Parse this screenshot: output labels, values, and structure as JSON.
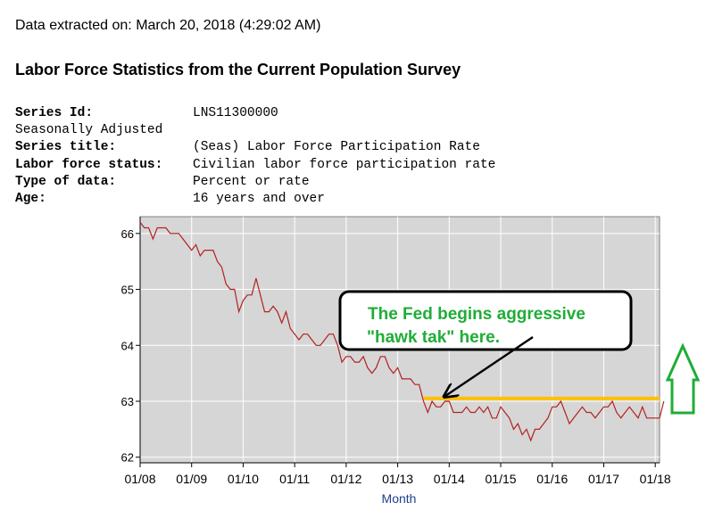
{
  "extracted": "Data extracted on: March 20, 2018 (4:29:02 AM)",
  "heading": "Labor Force Statistics from the Current Population Survey",
  "meta": {
    "series_id_label": "Series Id:",
    "series_id_value": "LNS11300000",
    "seasonal": "Seasonally Adjusted",
    "series_title_label": "Series title:",
    "series_title_value": "(Seas) Labor Force Participation Rate",
    "status_label": "Labor force status:",
    "status_value": "Civilian labor force participation rate",
    "type_label": "Type of data:",
    "type_value": "Percent or rate",
    "age_label": "Age:",
    "age_value": "16 years and over"
  },
  "chart_data": {
    "type": "line",
    "xlabel": "Month",
    "ylabel": "",
    "x_ticks": [
      "01/08",
      "01/09",
      "01/10",
      "01/11",
      "01/12",
      "01/13",
      "01/14",
      "01/15",
      "01/16",
      "01/17",
      "01/18"
    ],
    "y_ticks": [
      "62",
      "63",
      "64",
      "65",
      "66"
    ],
    "ylim": [
      61.9,
      66.3
    ],
    "xlim": [
      "2008-01",
      "2018-02"
    ],
    "grid": true,
    "series": [
      {
        "x_start": "2008-01",
        "values": [
          66.2,
          66.1,
          66.1,
          65.9,
          66.1,
          66.1,
          66.1,
          66.0,
          66.0,
          66.0,
          65.9,
          65.8,
          65.7,
          65.8,
          65.6,
          65.7,
          65.7,
          65.7,
          65.5,
          65.4,
          65.1,
          65.0,
          65.0,
          64.6,
          64.8,
          64.9,
          64.9,
          65.2,
          64.9,
          64.6,
          64.6,
          64.7,
          64.6,
          64.4,
          64.6,
          64.3,
          64.2,
          64.1,
          64.2,
          64.2,
          64.1,
          64.0,
          64.0,
          64.1,
          64.2,
          64.2,
          64.0,
          63.7,
          63.8,
          63.8,
          63.7,
          63.7,
          63.8,
          63.6,
          63.5,
          63.6,
          63.8,
          63.8,
          63.6,
          63.5,
          63.6,
          63.4,
          63.4,
          63.4,
          63.3,
          63.3,
          63.0,
          62.8,
          63.0,
          62.9,
          62.9,
          63.0,
          63.0,
          62.8,
          62.8,
          62.8,
          62.9,
          62.8,
          62.8,
          62.9,
          62.8,
          62.9,
          62.7,
          62.7,
          62.9,
          62.8,
          62.7,
          62.5,
          62.6,
          62.4,
          62.5,
          62.3,
          62.5,
          62.5,
          62.6,
          62.7,
          62.9,
          62.9,
          63.0,
          62.8,
          62.6,
          62.7,
          62.8,
          62.9,
          62.8,
          62.8,
          62.7,
          62.8,
          62.9,
          62.9,
          63.0,
          62.8,
          62.7,
          62.8,
          62.9,
          62.8,
          62.7,
          62.9,
          62.7,
          62.7,
          62.7,
          62.7,
          63.0
        ]
      }
    ],
    "annotation": {
      "text_line1": "The Fed begins aggressive",
      "text_line2": "\"hawk tak\" here.",
      "threshold_level": 63.05,
      "threshold_start": "2013-07"
    },
    "colors": {
      "plot_bg": "#d6d6d6",
      "line": "#b22222",
      "threshold": "#ffc000",
      "annotation_text": "#1fad37",
      "up_arrow": "#1fad37",
      "grid": "#ffffff",
      "axis_label": "#1e3f8f"
    }
  }
}
